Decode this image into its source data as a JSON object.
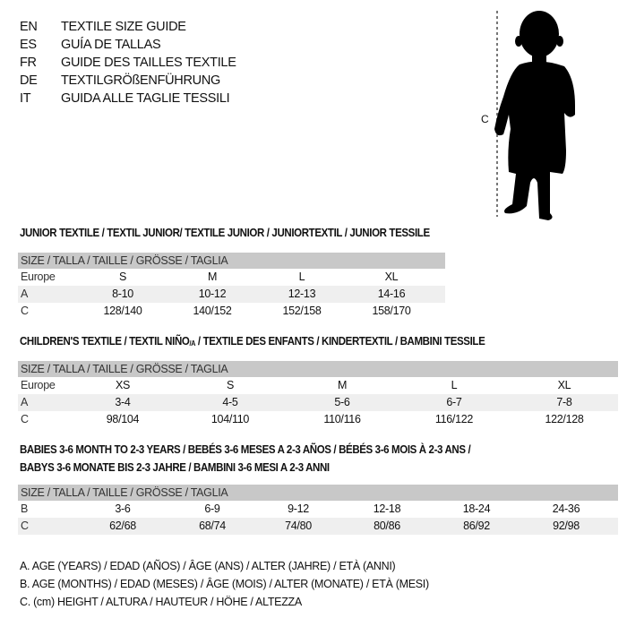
{
  "languages": [
    {
      "code": "EN",
      "title": "TEXTILE SIZE GUIDE"
    },
    {
      "code": "ES",
      "title": "GUÍA DE TALLAS"
    },
    {
      "code": "FR",
      "title": "GUIDE DES TAILLES TEXTILE"
    },
    {
      "code": "DE",
      "title": "TEXTILGRÖßENFÜHRUNG"
    },
    {
      "code": "IT",
      "title": "GUIDA ALLE TAGLIE TESSILI"
    }
  ],
  "figure": {
    "measure_label": "C"
  },
  "junior": {
    "heading": "JUNIOR TEXTILE / TEXTIL JUNIOR/ TEXTILE JUNIOR / JUNIORTEXTIL / JUNIOR TESSILE",
    "header": "SIZE / TALLA / TAILLE / GRÖSSE / TAGLIA",
    "rows": [
      {
        "label": "Europe",
        "values": [
          "S",
          "M",
          "L",
          "XL"
        ]
      },
      {
        "label": "A",
        "values": [
          "8-10",
          "10-12",
          "12-13",
          "14-16"
        ]
      },
      {
        "label": "C",
        "values": [
          "128/140",
          "140/152",
          "152/158",
          "158/170"
        ]
      }
    ]
  },
  "children": {
    "heading_a": "CHILDREN'S TEXTILE / TEXTIL NIÑO",
    "heading_sub": "/A",
    "heading_b": " / TEXTILE DES ENFANTS / KINDERTEXTIL / BAMBINI TESSILE",
    "header": "SIZE / TALLA / TAILLE / GRÖSSE / TAGLIA",
    "rows": [
      {
        "label": "Europe",
        "values": [
          "XS",
          "S",
          "M",
          "L",
          "XL"
        ]
      },
      {
        "label": "A",
        "values": [
          "3-4",
          "4-5",
          "5-6",
          "6-7",
          "7-8"
        ]
      },
      {
        "label": "C",
        "values": [
          "98/104",
          "104/110",
          "110/116",
          "116/122",
          "122/128"
        ]
      }
    ]
  },
  "babies": {
    "heading_line1": "BABIES 3-6 MONTH TO 2-3 YEARS / BEBÉS 3-6 MESES A 2-3 AÑOS / BÉBÉS 3-6 MOIS À 2-3 ANS /",
    "heading_line2": "BABYS 3-6 MONATE BIS 2-3 JAHRE / BAMBINI 3-6 MESI A 2-3 ANNI",
    "header": "SIZE / TALLA / TAILLE / GRÖSSE / TAGLIA",
    "rows": [
      {
        "label": "B",
        "values": [
          "3-6",
          "6-9",
          "9-12",
          "12-18",
          "18-24",
          "24-36"
        ]
      },
      {
        "label": "C",
        "values": [
          "62/68",
          "68/74",
          "74/80",
          "80/86",
          "86/92",
          "92/98"
        ]
      }
    ]
  },
  "notes": [
    "A. AGE (YEARS) / EDAD (AÑOS) / ÂGE (ANS) / ALTER (JAHRE) / ETÀ (ANNI)",
    "B. AGE (MONTHS) / EDAD (MESES) / ÂGE (MOIS) / ALTER (MONATE) / ETÀ (MESI)",
    "C. (cm) HEIGHT / ALTURA / HAUTEUR / HÖHE / ALTEZZA"
  ]
}
